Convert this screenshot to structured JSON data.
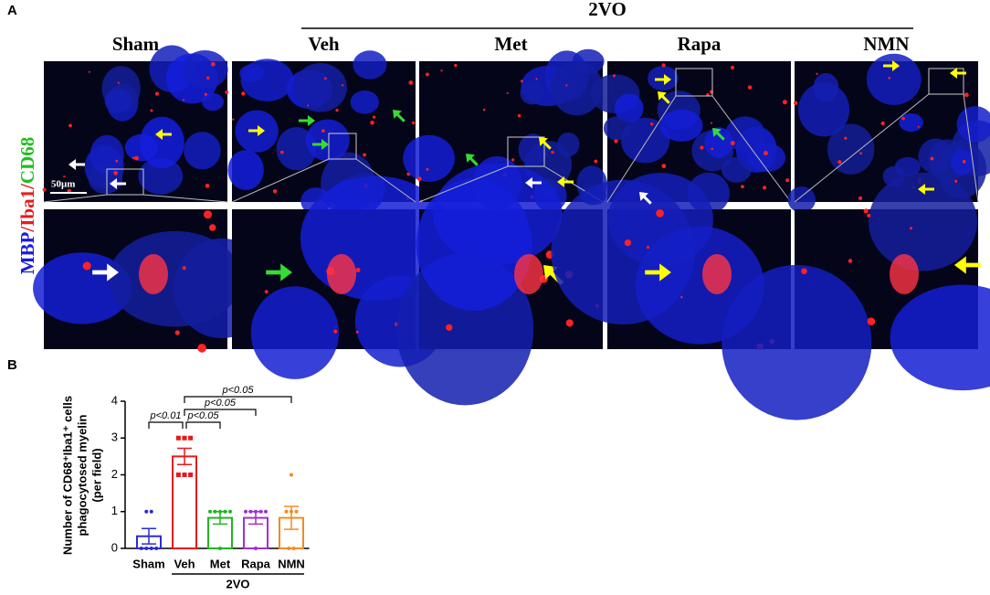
{
  "panel_a": {
    "label": "A",
    "group_label": "2VO",
    "columns": [
      "Sham",
      "Veh",
      "Met",
      "Rapa",
      "NMN"
    ],
    "channel_label": [
      "MBP",
      "/Iba1/",
      "CD68"
    ],
    "scale_bar": "50μm"
  },
  "chart_data": {
    "type": "bar",
    "panel_label": "B",
    "ylabel": [
      "Number of CD68⁺Iba1⁺ cells",
      "phagocytosed myelin",
      "(per field)"
    ],
    "categories": [
      "Sham",
      "Veh",
      "Met",
      "Rapa",
      "NMN"
    ],
    "group_label": "2VO",
    "values": [
      0.33,
      2.5,
      0.83,
      0.83,
      0.83
    ],
    "errors": [
      0.21,
      0.22,
      0.17,
      0.17,
      0.31
    ],
    "colors": [
      "#2b2bd6",
      "#e8191b",
      "#22b522",
      "#a12fd4",
      "#f58a22"
    ],
    "points": [
      [
        1,
        1,
        0,
        0,
        0,
        0
      ],
      [
        3,
        3,
        3,
        2,
        2,
        2
      ],
      [
        1,
        1,
        1,
        1,
        1,
        0
      ],
      [
        1,
        1,
        1,
        1,
        1,
        0
      ],
      [
        2,
        1,
        1,
        1,
        0,
        0
      ]
    ],
    "ylim": [
      0,
      4
    ],
    "yticks": [
      0,
      1,
      2,
      3,
      4
    ],
    "annotations": [
      "p<0.01",
      "p<0.05",
      "p<0.05",
      "p<0.05"
    ]
  }
}
